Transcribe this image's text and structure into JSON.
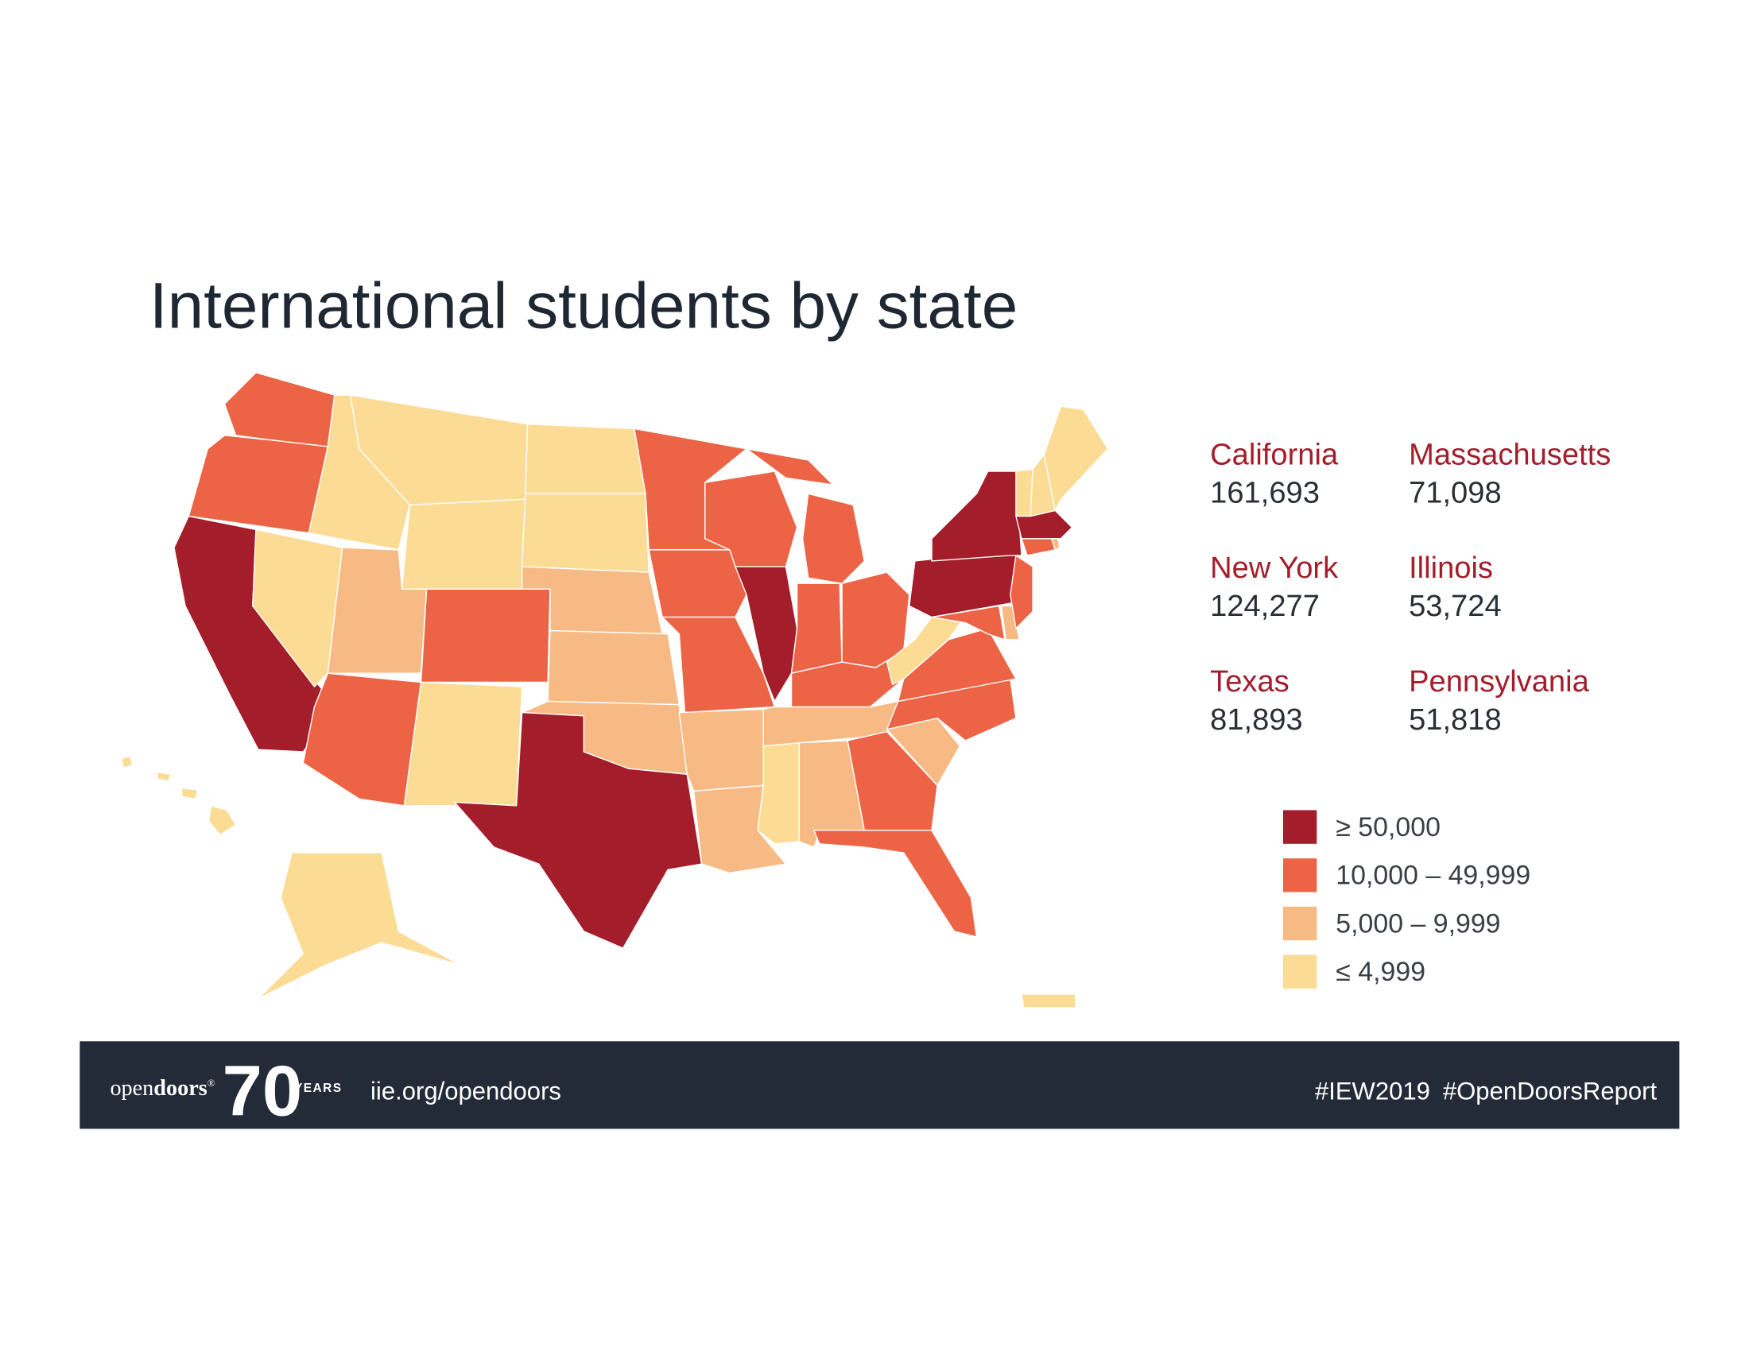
{
  "title": "International students by state",
  "top_states": [
    {
      "name": "California",
      "value": "161,693"
    },
    {
      "name": "New York",
      "value": "124,277"
    },
    {
      "name": "Texas",
      "value": "81,893"
    },
    {
      "name": "Massachusetts",
      "value": "71,098"
    },
    {
      "name": "Illinois",
      "value": "53,724"
    },
    {
      "name": "Pennsylvania",
      "value": "51,818"
    }
  ],
  "legend": [
    {
      "label": "≥ 50,000",
      "color": "#a31d2b"
    },
    {
      "label": "10,000 – 49,999",
      "color": "#ec6445"
    },
    {
      "label": "5,000 – 9,999",
      "color": "#f8ba85"
    },
    {
      "label": "≤ 4,999",
      "color": "#fcdb95"
    }
  ],
  "footer": {
    "logo_prefix": "open",
    "logo_suffix": "doors",
    "logo_mark": "®",
    "logo_number": "70",
    "logo_unit": "YEARS",
    "url": "iie.org/opendoors",
    "hashtags": [
      "#IEW2019",
      "#OpenDoorsReport"
    ]
  }
}
